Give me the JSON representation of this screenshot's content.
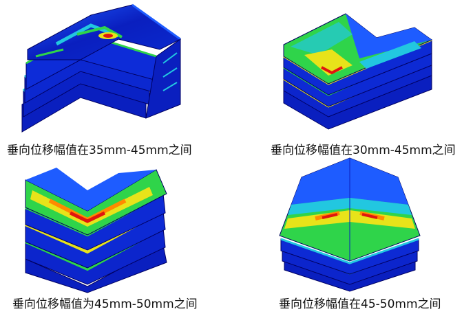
{
  "panels": [
    {
      "caption": "垂向位移幅值在35mm-45mm之间"
    },
    {
      "caption": "垂向位移幅值在30mm-45mm之间"
    },
    {
      "caption": "垂向位移幅值为45mm-50mm之间"
    },
    {
      "caption": "垂向位移幅值在45-50mm之间"
    }
  ],
  "colors": {
    "deep_blue": "#0a1fbf",
    "blue": "#1e5cff",
    "cyan": "#22c7e0",
    "green": "#2fd44a",
    "yellow": "#e8e31a",
    "orange": "#ff8a00",
    "red": "#e0150f",
    "edge": "#000060"
  }
}
